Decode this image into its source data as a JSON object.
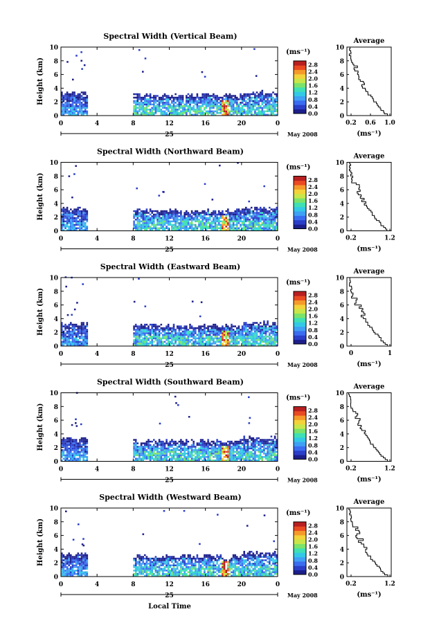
{
  "footer": {
    "xlabel": "Local Time"
  },
  "chart_data": [
    {
      "type": "heatmap",
      "title": "Spectral Width (Vertical Beam)",
      "ylabel": "Height (km)",
      "y_ticks": [
        "0",
        "2",
        "4",
        "6",
        "8",
        "10"
      ],
      "x_ticks": [
        "0",
        "4",
        "8",
        "12",
        "16",
        "20",
        "0"
      ],
      "date_day": "25",
      "date_month": "May 2008",
      "colorbar": {
        "unit": "(ms⁻¹)",
        "ticks": [
          "0.0",
          "0.4",
          "0.8",
          "1.2",
          "1.6",
          "2.0",
          "2.4",
          "2.8"
        ]
      },
      "average": {
        "title": "Average",
        "y_ticks": [
          "0",
          "2",
          "4",
          "6",
          "8",
          "10"
        ],
        "x_ticks": [
          "0.2",
          "0.6",
          "1.0"
        ],
        "xlabel": "(ms⁻¹)"
      }
    },
    {
      "type": "heatmap",
      "title": "Spectral Width (Northward Beam)",
      "ylabel": "Height (km)",
      "y_ticks": [
        "0",
        "2",
        "4",
        "6",
        "8",
        "10"
      ],
      "x_ticks": [
        "0",
        "4",
        "8",
        "12",
        "16",
        "20",
        "0"
      ],
      "date_day": "25",
      "date_month": "May 2008",
      "colorbar": {
        "unit": "(ms⁻¹)",
        "ticks": [
          "0.0",
          "0.4",
          "0.8",
          "1.2",
          "1.6",
          "2.0",
          "2.4",
          "2.8"
        ]
      },
      "average": {
        "title": "Average",
        "y_ticks": [
          "0",
          "2",
          "4",
          "6",
          "8",
          "10"
        ],
        "x_ticks": [
          "0.2",
          "1.2"
        ],
        "xlabel": "(ms⁻¹)"
      }
    },
    {
      "type": "heatmap",
      "title": "Spectral Width (Eastward Beam)",
      "ylabel": "Height (km)",
      "y_ticks": [
        "0",
        "2",
        "4",
        "6",
        "8",
        "10"
      ],
      "x_ticks": [
        "0",
        "4",
        "8",
        "12",
        "16",
        "20",
        "0"
      ],
      "date_day": "25",
      "date_month": "May 2008",
      "colorbar": {
        "unit": "(ms⁻¹)",
        "ticks": [
          "0.0",
          "0.4",
          "0.8",
          "1.2",
          "1.6",
          "2.0",
          "2.4",
          "2.8"
        ]
      },
      "average": {
        "title": "Average",
        "y_ticks": [
          "0",
          "2",
          "4",
          "6",
          "8",
          "10"
        ],
        "x_ticks": [
          "0",
          "1"
        ],
        "xlabel": "(ms⁻¹)"
      }
    },
    {
      "type": "heatmap",
      "title": "Spectral Width (Southward Beam)",
      "ylabel": "Height (km)",
      "y_ticks": [
        "0",
        "2",
        "4",
        "6",
        "8",
        "10"
      ],
      "x_ticks": [
        "0",
        "4",
        "8",
        "12",
        "16",
        "20",
        "0"
      ],
      "date_day": "25",
      "date_month": "May 2008",
      "colorbar": {
        "unit": "(ms⁻¹)",
        "ticks": [
          "0.0",
          "0.4",
          "0.8",
          "1.2",
          "1.6",
          "2.0",
          "2.4",
          "2.8"
        ]
      },
      "average": {
        "title": "Average",
        "y_ticks": [
          "0",
          "2",
          "4",
          "6",
          "8",
          "10"
        ],
        "x_ticks": [
          "0.2",
          "1.2"
        ],
        "xlabel": "(ms⁻¹)"
      }
    },
    {
      "type": "heatmap",
      "title": "Spectral Width (Westward Beam)",
      "ylabel": "Height (km)",
      "y_ticks": [
        "0",
        "2",
        "4",
        "6",
        "8",
        "10"
      ],
      "x_ticks": [
        "0",
        "4",
        "8",
        "12",
        "16",
        "20",
        "0"
      ],
      "date_day": "25",
      "date_month": "May 2008",
      "colorbar": {
        "unit": "(ms⁻¹)",
        "ticks": [
          "0.0",
          "0.4",
          "0.8",
          "1.2",
          "1.6",
          "2.0",
          "2.4",
          "2.8"
        ]
      },
      "average": {
        "title": "Average",
        "y_ticks": [
          "0",
          "2",
          "4",
          "6",
          "8",
          "10"
        ],
        "x_ticks": [
          "0.2",
          "1.2"
        ],
        "xlabel": "(ms⁻¹)"
      }
    }
  ]
}
